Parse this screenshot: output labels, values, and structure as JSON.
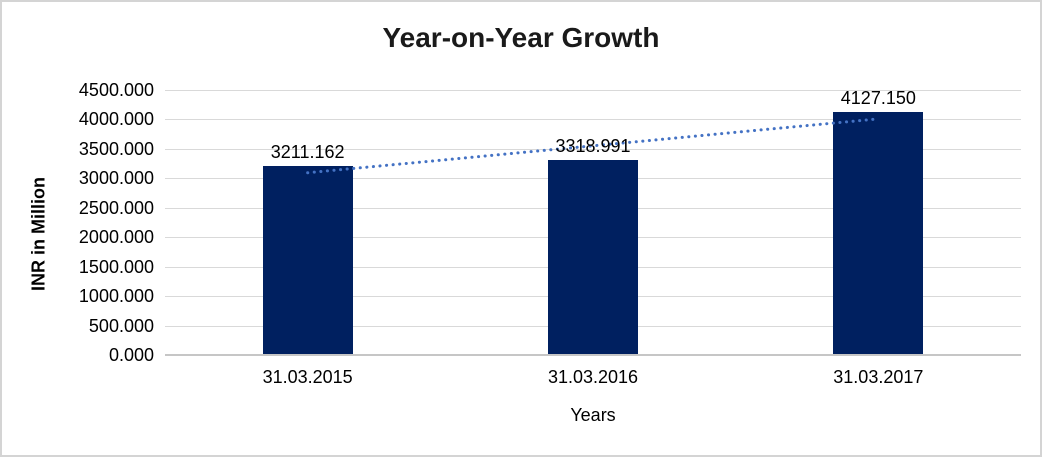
{
  "window": {
    "background": "#ffffff",
    "frame_border_color": "#d4d4d4"
  },
  "chart_data": {
    "type": "bar",
    "title": "Year-on-Year Growth",
    "xlabel": "Years",
    "ylabel": "INR in Million",
    "categories": [
      "31.03.2015",
      "31.03.2016",
      "31.03.2017"
    ],
    "values": [
      3211.162,
      3318.991,
      4127.15
    ],
    "value_labels": [
      "3211.162",
      "3318.991",
      "4127.150"
    ],
    "ylim": [
      0,
      4500
    ],
    "ytick_step": 500,
    "ytick_labels": [
      "0.000",
      "500.000",
      "1000.000",
      "1500.000",
      "2000.000",
      "2500.000",
      "3000.000",
      "3500.000",
      "4000.000",
      "4500.000"
    ],
    "grid": true,
    "legend": "none",
    "trendline": {
      "type": "linear",
      "style": "dotted",
      "color": "#4472C4",
      "values": [
        3094.44,
        3552.434,
        4010.428
      ]
    },
    "colors": {
      "bar": "#002060",
      "gridline": "#d9d9d9",
      "axis_line": "#c6c6c6",
      "trendline": "#4472C4",
      "text": "#000000"
    }
  }
}
